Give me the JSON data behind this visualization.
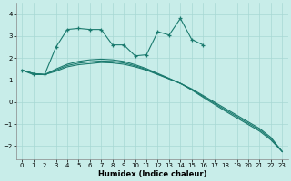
{
  "xlabel": "Humidex (Indice chaleur)",
  "background_color": "#c8ede9",
  "grid_color": "#a8d8d4",
  "line_color": "#1a7a6e",
  "xlim": [
    -0.5,
    23.5
  ],
  "ylim": [
    -2.6,
    4.5
  ],
  "yticks": [
    -2,
    -1,
    0,
    1,
    2,
    3,
    4
  ],
  "xticks": [
    0,
    1,
    2,
    3,
    4,
    5,
    6,
    7,
    8,
    9,
    10,
    11,
    12,
    13,
    14,
    15,
    16,
    17,
    18,
    19,
    20,
    21,
    22,
    23
  ],
  "series": [
    {
      "x": [
        0,
        1,
        2,
        3,
        4,
        5,
        6,
        7,
        8,
        9,
        10,
        11,
        12,
        13,
        14,
        15,
        16
      ],
      "y": [
        1.45,
        1.25,
        1.25,
        2.5,
        3.3,
        3.35,
        3.3,
        3.3,
        2.6,
        2.6,
        2.1,
        2.15,
        3.2,
        3.05,
        3.8,
        2.85,
        2.6
      ],
      "has_markers": true
    },
    {
      "x": [
        0,
        1,
        2,
        3,
        4,
        5,
        6,
        7,
        8,
        9,
        10,
        11,
        12,
        13,
        14,
        15,
        16,
        17,
        18,
        19,
        20,
        21,
        22,
        23
      ],
      "y": [
        1.45,
        1.3,
        1.25,
        1.4,
        1.6,
        1.7,
        1.75,
        1.8,
        1.78,
        1.72,
        1.6,
        1.45,
        1.25,
        1.05,
        0.85,
        0.6,
        0.3,
        0.0,
        -0.3,
        -0.6,
        -0.9,
        -1.2,
        -1.6,
        -2.25
      ],
      "has_markers": false
    },
    {
      "x": [
        0,
        1,
        2,
        3,
        4,
        5,
        6,
        7,
        8,
        9,
        10,
        11,
        12,
        13,
        14,
        15,
        16,
        17,
        18,
        19,
        20,
        21,
        22,
        23
      ],
      "y": [
        1.45,
        1.3,
        1.25,
        1.5,
        1.72,
        1.85,
        1.92,
        1.95,
        1.92,
        1.85,
        1.7,
        1.52,
        1.3,
        1.08,
        0.85,
        0.55,
        0.22,
        -0.1,
        -0.42,
        -0.72,
        -1.02,
        -1.32,
        -1.72,
        -2.25
      ],
      "has_markers": false
    },
    {
      "x": [
        0,
        1,
        2,
        3,
        4,
        5,
        6,
        7,
        8,
        9,
        10,
        11,
        12,
        13,
        14,
        15,
        16,
        17,
        18,
        19,
        20,
        21,
        22,
        23
      ],
      "y": [
        1.45,
        1.3,
        1.25,
        1.45,
        1.66,
        1.77,
        1.83,
        1.87,
        1.85,
        1.78,
        1.65,
        1.48,
        1.27,
        1.06,
        0.85,
        0.57,
        0.26,
        -0.05,
        -0.36,
        -0.66,
        -0.96,
        -1.26,
        -1.66,
        -2.25
      ],
      "has_markers": false
    }
  ]
}
